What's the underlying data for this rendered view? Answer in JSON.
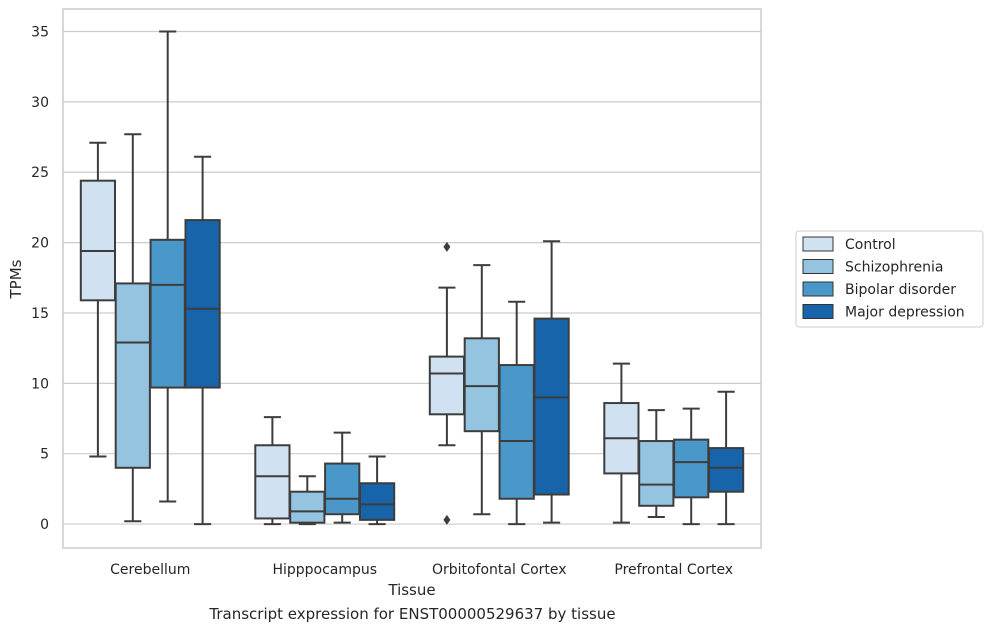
{
  "caption": "Transcript expression for ENST00000529637 by tissue",
  "chart_data": {
    "type": "boxplot",
    "xlabel": "Tissue",
    "ylabel": "TPMs",
    "ylim": [
      -1.7,
      36.6
    ],
    "yticks": [
      0,
      5,
      10,
      15,
      20,
      25,
      30,
      35
    ],
    "grid": "horizontal",
    "legend_placement": "right",
    "categories": [
      "Cerebellum",
      "Hipppocampus",
      "Orbitofontal Cortex",
      "Prefrontal Cortex"
    ],
    "series": [
      {
        "name": "Control",
        "color": "#d0e1f2",
        "boxes": [
          {
            "whisker_low": 4.8,
            "q1": 15.9,
            "median": 19.4,
            "q3": 24.4,
            "whisker_high": 27.1,
            "outliers": []
          },
          {
            "whisker_low": 0.0,
            "q1": 0.4,
            "median": 3.4,
            "q3": 5.6,
            "whisker_high": 7.6,
            "outliers": []
          },
          {
            "whisker_low": 5.6,
            "q1": 7.8,
            "median": 10.7,
            "q3": 11.9,
            "whisker_high": 16.8,
            "outliers": [
              19.7,
              0.3
            ]
          },
          {
            "whisker_low": 0.1,
            "q1": 3.6,
            "median": 6.1,
            "q3": 8.6,
            "whisker_high": 11.4,
            "outliers": []
          }
        ]
      },
      {
        "name": "Schizophrenia",
        "color": "#94c4df",
        "boxes": [
          {
            "whisker_low": 0.2,
            "q1": 4.0,
            "median": 12.9,
            "q3": 17.1,
            "whisker_high": 27.7,
            "outliers": []
          },
          {
            "whisker_low": 0.0,
            "q1": 0.1,
            "median": 0.9,
            "q3": 2.3,
            "whisker_high": 3.4,
            "outliers": []
          },
          {
            "whisker_low": 0.7,
            "q1": 6.6,
            "median": 9.8,
            "q3": 13.2,
            "whisker_high": 18.4,
            "outliers": []
          },
          {
            "whisker_low": 0.5,
            "q1": 1.3,
            "median": 2.8,
            "q3": 5.9,
            "whisker_high": 8.1,
            "outliers": []
          }
        ]
      },
      {
        "name": "Bipolar disorder",
        "color": "#4a98c9",
        "boxes": [
          {
            "whisker_low": 1.6,
            "q1": 9.7,
            "median": 17.0,
            "q3": 20.2,
            "whisker_high": 35.0,
            "outliers": []
          },
          {
            "whisker_low": 0.1,
            "q1": 0.7,
            "median": 1.8,
            "q3": 4.3,
            "whisker_high": 6.5,
            "outliers": []
          },
          {
            "whisker_low": 0.0,
            "q1": 1.8,
            "median": 5.9,
            "q3": 11.3,
            "whisker_high": 15.8,
            "outliers": []
          },
          {
            "whisker_low": 0.0,
            "q1": 1.9,
            "median": 4.4,
            "q3": 6.0,
            "whisker_high": 8.2,
            "outliers": []
          }
        ]
      },
      {
        "name": "Major depression",
        "color": "#1764ab",
        "boxes": [
          {
            "whisker_low": 0.0,
            "q1": 9.7,
            "median": 15.3,
            "q3": 21.6,
            "whisker_high": 26.1,
            "outliers": []
          },
          {
            "whisker_low": 0.0,
            "q1": 0.3,
            "median": 1.4,
            "q3": 2.9,
            "whisker_high": 4.8,
            "outliers": []
          },
          {
            "whisker_low": 0.1,
            "q1": 2.1,
            "median": 9.0,
            "q3": 14.6,
            "whisker_high": 20.1,
            "outliers": []
          },
          {
            "whisker_low": 0.0,
            "q1": 2.3,
            "median": 4.0,
            "q3": 5.4,
            "whisker_high": 9.4,
            "outliers": []
          }
        ]
      }
    ]
  }
}
